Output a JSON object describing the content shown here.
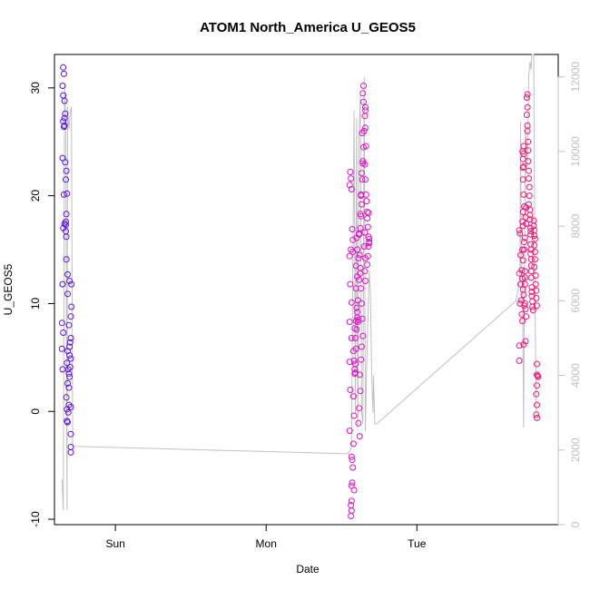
{
  "chart_data": {
    "type": "scatter",
    "title": "ATOM1 North_America U_GEOS5",
    "xlabel": "Date",
    "ylabel": "U_GEOS5",
    "x_ticks": [
      {
        "label": "Sun",
        "hours": 0
      },
      {
        "label": "Mon",
        "hours": 24
      },
      {
        "label": "Tue",
        "hours": 48
      }
    ],
    "xlim_hours": [
      -9.7,
      70.5
    ],
    "ylim": [
      -10.5,
      33.1
    ],
    "yticks": [
      -10,
      0,
      10,
      20,
      30
    ],
    "secondary_axis": {
      "ylim": [
        0,
        12600
      ],
      "ticks": [
        0,
        2000,
        4000,
        6000,
        8000,
        10000,
        12000
      ],
      "color": "#c0c0c0"
    },
    "grid": false,
    "point_color_gradient": [
      "#5a10f0",
      "#d810e8",
      "#ff1070"
    ],
    "series": [
      {
        "values_xy_hours": [
          [
            -8.3,
            31.9
          ],
          [
            -8.2,
            31.3
          ],
          [
            -8.4,
            30.2
          ],
          [
            -8.3,
            29.3
          ],
          [
            -8.1,
            28.8
          ],
          [
            -8.0,
            27.6
          ],
          [
            -8.1,
            27.2
          ],
          [
            -8.2,
            26.4
          ],
          [
            -8.3,
            26.9
          ],
          [
            -8.1,
            26.5
          ],
          [
            -8.4,
            23.5
          ],
          [
            -8.0,
            23.1
          ],
          [
            -7.8,
            22.3
          ],
          [
            -7.9,
            21.5
          ],
          [
            -8.2,
            20.1
          ],
          [
            -7.7,
            20.2
          ],
          [
            -7.8,
            18.3
          ],
          [
            -7.9,
            17.6
          ],
          [
            -7.9,
            17.3
          ],
          [
            -8.1,
            17.4
          ],
          [
            -8.3,
            17.0
          ],
          [
            -7.9,
            16.7
          ],
          [
            -7.8,
            16.2
          ],
          [
            -7.8,
            14.1
          ],
          [
            -7.6,
            12.7
          ],
          [
            -7.3,
            12.1
          ],
          [
            -8.4,
            11.8
          ],
          [
            -7.0,
            11.8
          ],
          [
            -7.6,
            10.9
          ],
          [
            -7.0,
            9.7
          ],
          [
            -7.1,
            8.8
          ],
          [
            -8.5,
            8.2
          ],
          [
            -7.4,
            8.0
          ],
          [
            -8.3,
            7.3
          ],
          [
            -7.1,
            6.8
          ],
          [
            -7.2,
            6.4
          ],
          [
            -7.3,
            6.0
          ],
          [
            -8.5,
            5.8
          ],
          [
            -7.6,
            5.6
          ],
          [
            -7.3,
            5.2
          ],
          [
            -7.1,
            4.9
          ],
          [
            -7.7,
            4.5
          ],
          [
            -7.2,
            4.1
          ],
          [
            -7.5,
            3.9
          ],
          [
            -8.4,
            3.9
          ],
          [
            -7.4,
            3.5
          ],
          [
            -7.3,
            3.2
          ],
          [
            -7.6,
            2.6
          ],
          [
            -7.4,
            2.2
          ],
          [
            -7.8,
            1.3
          ],
          [
            -7.4,
            0.6
          ],
          [
            -7.7,
            0.2
          ],
          [
            -7.5,
            -0.1
          ],
          [
            -7.1,
            0.4
          ],
          [
            -7.7,
            -0.9
          ],
          [
            -7.6,
            -1.0
          ],
          [
            -7.1,
            -2.1
          ],
          [
            -7.1,
            -3.3
          ],
          [
            -7.1,
            -3.8
          ]
        ]
      },
      {
        "values_xy_hours": [
          [
            37.4,
            22.2
          ],
          [
            37.5,
            21.6
          ],
          [
            37.3,
            21.0
          ],
          [
            37.6,
            20.6
          ],
          [
            37.7,
            16.9
          ],
          [
            37.8,
            15.9
          ],
          [
            37.5,
            15.0
          ],
          [
            37.8,
            14.8
          ],
          [
            37.3,
            14.4
          ],
          [
            37.4,
            11.8
          ],
          [
            37.6,
            10.1
          ],
          [
            37.3,
            8.3
          ],
          [
            37.6,
            6.8
          ],
          [
            37.3,
            4.6
          ],
          [
            37.4,
            2.0
          ],
          [
            37.3,
            -1.8
          ],
          [
            37.6,
            -4.2
          ],
          [
            37.7,
            -4.5
          ],
          [
            37.7,
            -6.6
          ],
          [
            37.6,
            -6.9
          ],
          [
            37.6,
            -8.3
          ],
          [
            37.5,
            -8.7
          ],
          [
            37.6,
            -9.2
          ],
          [
            37.5,
            -9.7
          ],
          [
            38.0,
            -7.3
          ],
          [
            37.8,
            -5.2
          ],
          [
            37.9,
            -3.0
          ],
          [
            38.0,
            -0.4
          ],
          [
            37.9,
            1.4
          ],
          [
            38.1,
            3.5
          ],
          [
            38.0,
            4.7
          ],
          [
            37.9,
            5.6
          ],
          [
            38.2,
            6.8
          ],
          [
            38.1,
            7.7
          ],
          [
            38.3,
            8.4
          ],
          [
            38.5,
            8.7
          ],
          [
            38.4,
            9.6
          ],
          [
            38.6,
            10.3
          ],
          [
            38.3,
            11.4
          ],
          [
            38.5,
            12.5
          ],
          [
            38.3,
            13.5
          ],
          [
            38.7,
            14.2
          ],
          [
            38.5,
            15.0
          ],
          [
            38.4,
            16.1
          ],
          [
            38.8,
            16.4
          ],
          [
            39.0,
            17.0
          ],
          [
            39.1,
            18.1
          ],
          [
            39.2,
            19.2
          ],
          [
            39.1,
            20.0
          ],
          [
            39.3,
            21.5
          ],
          [
            39.4,
            23.0
          ],
          [
            39.5,
            24.5
          ],
          [
            39.6,
            26.0
          ],
          [
            39.5,
            28.7
          ],
          [
            39.5,
            30.2
          ],
          [
            39.4,
            29.5
          ],
          [
            39.3,
            25.8
          ],
          [
            39.4,
            23.2
          ],
          [
            39.2,
            22.1
          ],
          [
            39.1,
            20.1
          ],
          [
            39.0,
            18.3
          ],
          [
            38.8,
            16.5
          ],
          [
            38.9,
            14.5
          ],
          [
            39.0,
            12.8
          ],
          [
            39.1,
            11.4
          ],
          [
            39.2,
            10.0
          ],
          [
            39.3,
            8.6
          ],
          [
            39.4,
            7.0
          ],
          [
            39.2,
            6.0
          ],
          [
            39.1,
            4.8
          ],
          [
            38.9,
            3.4
          ],
          [
            39.0,
            1.9
          ],
          [
            38.8,
            0.3
          ],
          [
            38.7,
            -1.1
          ],
          [
            38.9,
            -2.3
          ],
          [
            39.8,
            28.2
          ],
          [
            39.8,
            27.9
          ],
          [
            39.7,
            27.4
          ],
          [
            39.8,
            26.3
          ],
          [
            39.9,
            24.6
          ],
          [
            39.7,
            22.9
          ],
          [
            39.8,
            21.5
          ],
          [
            39.9,
            20.1
          ],
          [
            40.0,
            19.5
          ],
          [
            40.1,
            18.5
          ],
          [
            40.1,
            17.9
          ],
          [
            40.2,
            17.1
          ],
          [
            40.3,
            16.2
          ],
          [
            40.4,
            15.6
          ],
          [
            40.3,
            15.3
          ],
          [
            40.2,
            14.4
          ],
          [
            40.1,
            13.6
          ],
          [
            40.4,
            16.0
          ],
          [
            40.4,
            15.7
          ],
          [
            40.3,
            18.4
          ],
          [
            39.7,
            16.6
          ],
          [
            39.6,
            15.3
          ],
          [
            39.8,
            14.2
          ],
          [
            39.7,
            13.0
          ],
          [
            39.8,
            12.1
          ],
          [
            38.6,
            8.3
          ],
          [
            38.7,
            8.5
          ],
          [
            38.5,
            9.2
          ],
          [
            38.8,
            12.2
          ],
          [
            39.0,
            13.3
          ],
          [
            38.4,
            7.6
          ],
          [
            38.3,
            5.8
          ],
          [
            38.2,
            4.4
          ],
          [
            38.1,
            3.9
          ],
          [
            38.2,
            3.6
          ]
        ]
      },
      {
        "values_xy_hours": [
          [
            64.3,
            16.8
          ],
          [
            64.4,
            16.5
          ],
          [
            64.5,
            14.5
          ],
          [
            64.3,
            12.8
          ],
          [
            64.5,
            11.8
          ],
          [
            64.6,
            10.3
          ],
          [
            64.4,
            10.0
          ],
          [
            64.7,
            9.0
          ],
          [
            64.8,
            8.4
          ],
          [
            64.3,
            6.1
          ],
          [
            64.3,
            4.7
          ],
          [
            64.9,
            17.2
          ],
          [
            64.8,
            15.0
          ],
          [
            64.9,
            14.0
          ],
          [
            64.7,
            13.1
          ],
          [
            64.8,
            12.3
          ],
          [
            64.9,
            11.3
          ],
          [
            65.0,
            10.8
          ],
          [
            65.1,
            9.8
          ],
          [
            65.0,
            6.2
          ],
          [
            64.9,
            18.5
          ],
          [
            64.8,
            17.6
          ],
          [
            64.9,
            21.5
          ],
          [
            64.9,
            22.6
          ],
          [
            64.9,
            23.4
          ],
          [
            64.8,
            24.1
          ],
          [
            65.0,
            24.6
          ],
          [
            65.0,
            23.9
          ],
          [
            65.0,
            22.7
          ],
          [
            65.0,
            20.1
          ],
          [
            65.1,
            19.0
          ],
          [
            65.1,
            15.7
          ],
          [
            65.1,
            15.0
          ],
          [
            65.2,
            13.0
          ],
          [
            65.2,
            12.4
          ],
          [
            65.2,
            11.8
          ],
          [
            65.2,
            10.0
          ],
          [
            65.3,
            9.5
          ],
          [
            65.4,
            8.8
          ],
          [
            65.3,
            6.5
          ],
          [
            65.6,
            29.4
          ],
          [
            65.5,
            29.1
          ],
          [
            65.6,
            28.2
          ],
          [
            65.5,
            27.5
          ],
          [
            65.6,
            26.5
          ],
          [
            65.6,
            26.0
          ],
          [
            65.7,
            25.0
          ],
          [
            65.7,
            24.2
          ],
          [
            65.7,
            23.2
          ],
          [
            65.8,
            22.3
          ],
          [
            65.8,
            21.6
          ],
          [
            65.9,
            20.8
          ],
          [
            65.9,
            20.0
          ],
          [
            65.8,
            19.2
          ],
          [
            66.0,
            18.7
          ],
          [
            66.0,
            18.2
          ],
          [
            66.0,
            17.8
          ],
          [
            66.1,
            17.0
          ],
          [
            66.1,
            16.7
          ],
          [
            66.1,
            16.4
          ],
          [
            66.1,
            15.5
          ],
          [
            66.2,
            15.0
          ],
          [
            66.1,
            14.6
          ],
          [
            66.2,
            14.1
          ],
          [
            66.2,
            13.5
          ],
          [
            66.2,
            13.0
          ],
          [
            66.2,
            12.4
          ],
          [
            66.3,
            11.5
          ],
          [
            66.3,
            11.1
          ],
          [
            66.3,
            10.7
          ],
          [
            66.4,
            10.2
          ],
          [
            66.4,
            9.7
          ],
          [
            66.5,
            9.4
          ],
          [
            66.6,
            17.7
          ],
          [
            66.6,
            17.2
          ],
          [
            66.7,
            16.8
          ],
          [
            66.7,
            16.3
          ],
          [
            66.8,
            16.0
          ],
          [
            66.7,
            15.4
          ],
          [
            66.8,
            14.8
          ],
          [
            66.8,
            14.1
          ],
          [
            66.7,
            13.4
          ],
          [
            66.9,
            12.6
          ],
          [
            66.9,
            11.8
          ],
          [
            67.0,
            11.2
          ],
          [
            67.0,
            10.5
          ],
          [
            67.1,
            9.8
          ],
          [
            67.1,
            4.4
          ],
          [
            67.1,
            3.4
          ],
          [
            67.2,
            3.3
          ],
          [
            67.3,
            3.2
          ],
          [
            67.1,
            2.4
          ],
          [
            67.0,
            1.6
          ],
          [
            67.1,
            0.6
          ],
          [
            67.0,
            -0.3
          ],
          [
            67.1,
            -0.6
          ],
          [
            65.4,
            18.9
          ],
          [
            65.3,
            18.0
          ],
          [
            65.4,
            17.4
          ],
          [
            65.2,
            16.1
          ]
        ]
      }
    ],
    "secondary_line": {
      "color": "#c0c0c0",
      "values_xy_hours": [
        [
          -8.5,
          1200
        ],
        [
          -8.3,
          400
        ],
        [
          -8.1,
          11800
        ],
        [
          -7.9,
          10800
        ],
        [
          -7.7,
          400
        ],
        [
          -7.6,
          11200
        ],
        [
          -7.4,
          10600
        ],
        [
          -7.2,
          11000
        ],
        [
          -7.0,
          11200
        ],
        [
          -6.8,
          2100
        ],
        [
          36.8,
          1900
        ],
        [
          37.0,
          1900
        ],
        [
          37.2,
          1950
        ],
        [
          37.4,
          2000
        ],
        [
          37.6,
          2100
        ],
        [
          37.8,
          7000
        ],
        [
          38.0,
          11100
        ],
        [
          38.2,
          3000
        ],
        [
          38.4,
          10900
        ],
        [
          38.6,
          2600
        ],
        [
          38.8,
          10500
        ],
        [
          39.0,
          11500
        ],
        [
          39.2,
          3000
        ],
        [
          39.4,
          2700
        ],
        [
          39.6,
          12000
        ],
        [
          39.8,
          2500
        ],
        [
          40.0,
          4100
        ],
        [
          40.2,
          5500
        ],
        [
          40.4,
          6800
        ],
        [
          40.6,
          6200
        ],
        [
          40.8,
          4000
        ],
        [
          41.0,
          3000
        ],
        [
          41.1,
          4000
        ],
        [
          41.3,
          2700
        ],
        [
          41.6,
          2700
        ],
        [
          63.8,
          6000
        ],
        [
          64.0,
          6200
        ],
        [
          64.2,
          6400
        ],
        [
          64.4,
          6600
        ],
        [
          64.5,
          10800
        ],
        [
          64.6,
          7000
        ],
        [
          64.8,
          6600
        ],
        [
          65.0,
          2600
        ],
        [
          65.1,
          6000
        ],
        [
          65.3,
          10600
        ],
        [
          65.6,
          9600
        ],
        [
          65.8,
          12000
        ],
        [
          66.0,
          12400
        ],
        [
          66.2,
          12200
        ],
        [
          66.3,
          12600
        ],
        [
          66.6,
          12600
        ],
        [
          66.8,
          6000
        ],
        [
          67.0,
          3000
        ]
      ]
    }
  }
}
